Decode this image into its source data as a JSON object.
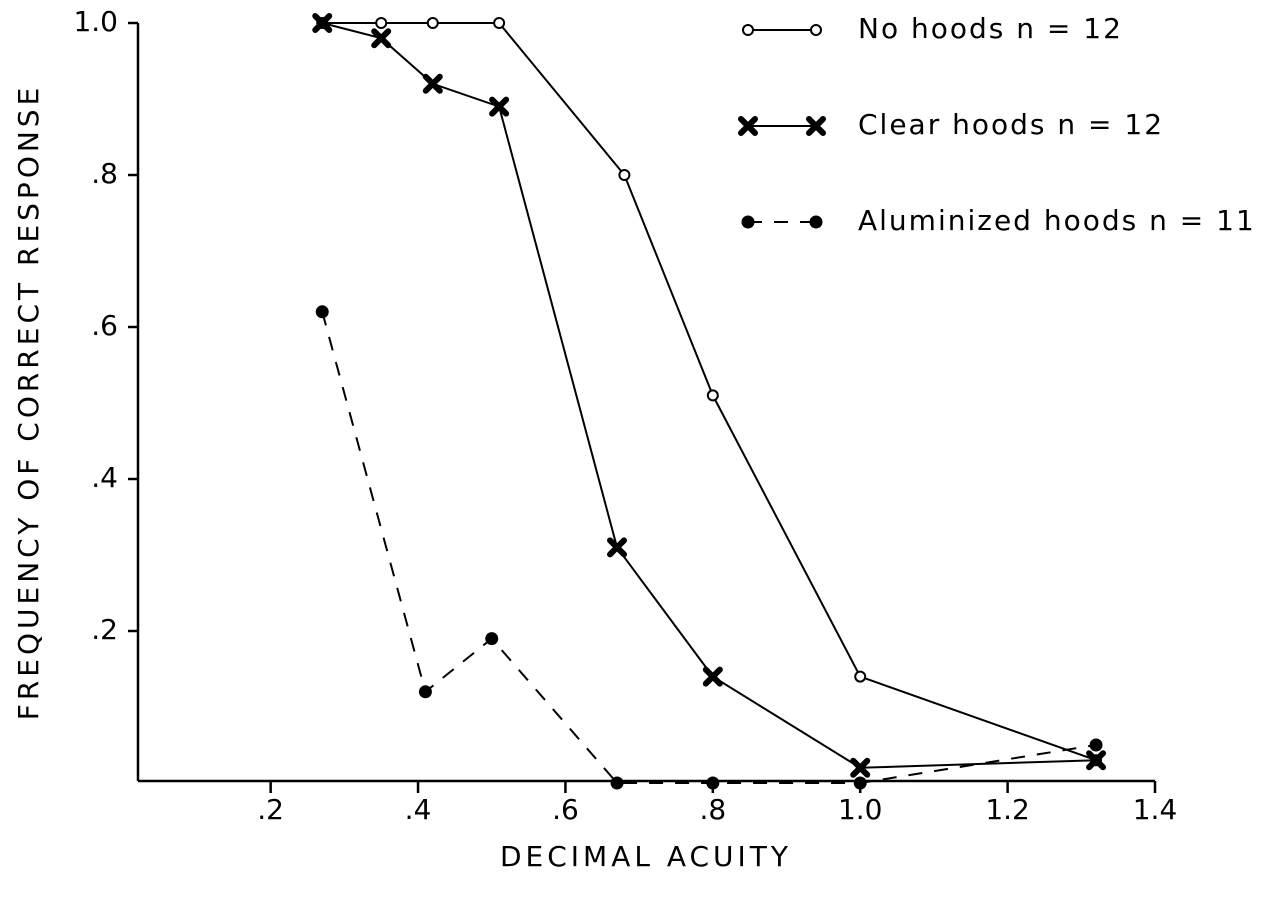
{
  "chart_data": {
    "type": "line",
    "xlabel": "DECIMAL ACUITY",
    "ylabel": "FREQUENCY OF CORRECT RESPONSE",
    "xlim": [
      0.02,
      1.4
    ],
    "ylim": [
      0,
      1.0
    ],
    "xticks": [
      {
        "value": 0.2,
        "label": ".2"
      },
      {
        "value": 0.4,
        "label": ".4"
      },
      {
        "value": 0.6,
        "label": ".6"
      },
      {
        "value": 0.8,
        "label": ".8"
      },
      {
        "value": 1.0,
        "label": "1.0"
      },
      {
        "value": 1.2,
        "label": "1.2"
      },
      {
        "value": 1.4,
        "label": "1.4"
      }
    ],
    "yticks": [
      {
        "value": 0.2,
        "label": ".2"
      },
      {
        "value": 0.4,
        "label": ".4"
      },
      {
        "value": 0.6,
        "label": ".6"
      },
      {
        "value": 0.8,
        "label": ".8"
      },
      {
        "value": 1.0,
        "label": "1.0"
      }
    ],
    "grid": false,
    "legend": "upper right",
    "series": [
      {
        "name": "No hoods  n = 12",
        "color": "#000000",
        "marker": "open-circle",
        "line": "solid",
        "x": [
          0.27,
          0.35,
          0.42,
          0.51,
          0.68,
          0.8,
          1.0,
          1.32
        ],
        "values": [
          1.0,
          1.0,
          1.0,
          1.0,
          0.8,
          0.51,
          0.14,
          0.03
        ]
      },
      {
        "name": "Clear hoods  n = 12",
        "color": "#000000",
        "marker": "cross",
        "line": "solid",
        "x": [
          0.27,
          0.35,
          0.42,
          0.51,
          0.67,
          0.8,
          1.0,
          1.32
        ],
        "values": [
          1.0,
          0.98,
          0.92,
          0.89,
          0.31,
          0.14,
          0.02,
          0.03
        ]
      },
      {
        "name": "Aluminized hoods  n = 11",
        "color": "#000000",
        "marker": "dot",
        "line": "dashed",
        "x": [
          0.27,
          0.41,
          0.5,
          0.67,
          0.8,
          1.0,
          1.32
        ],
        "values": [
          0.62,
          0.12,
          0.19,
          0,
          0,
          0,
          0.05
        ]
      }
    ]
  }
}
